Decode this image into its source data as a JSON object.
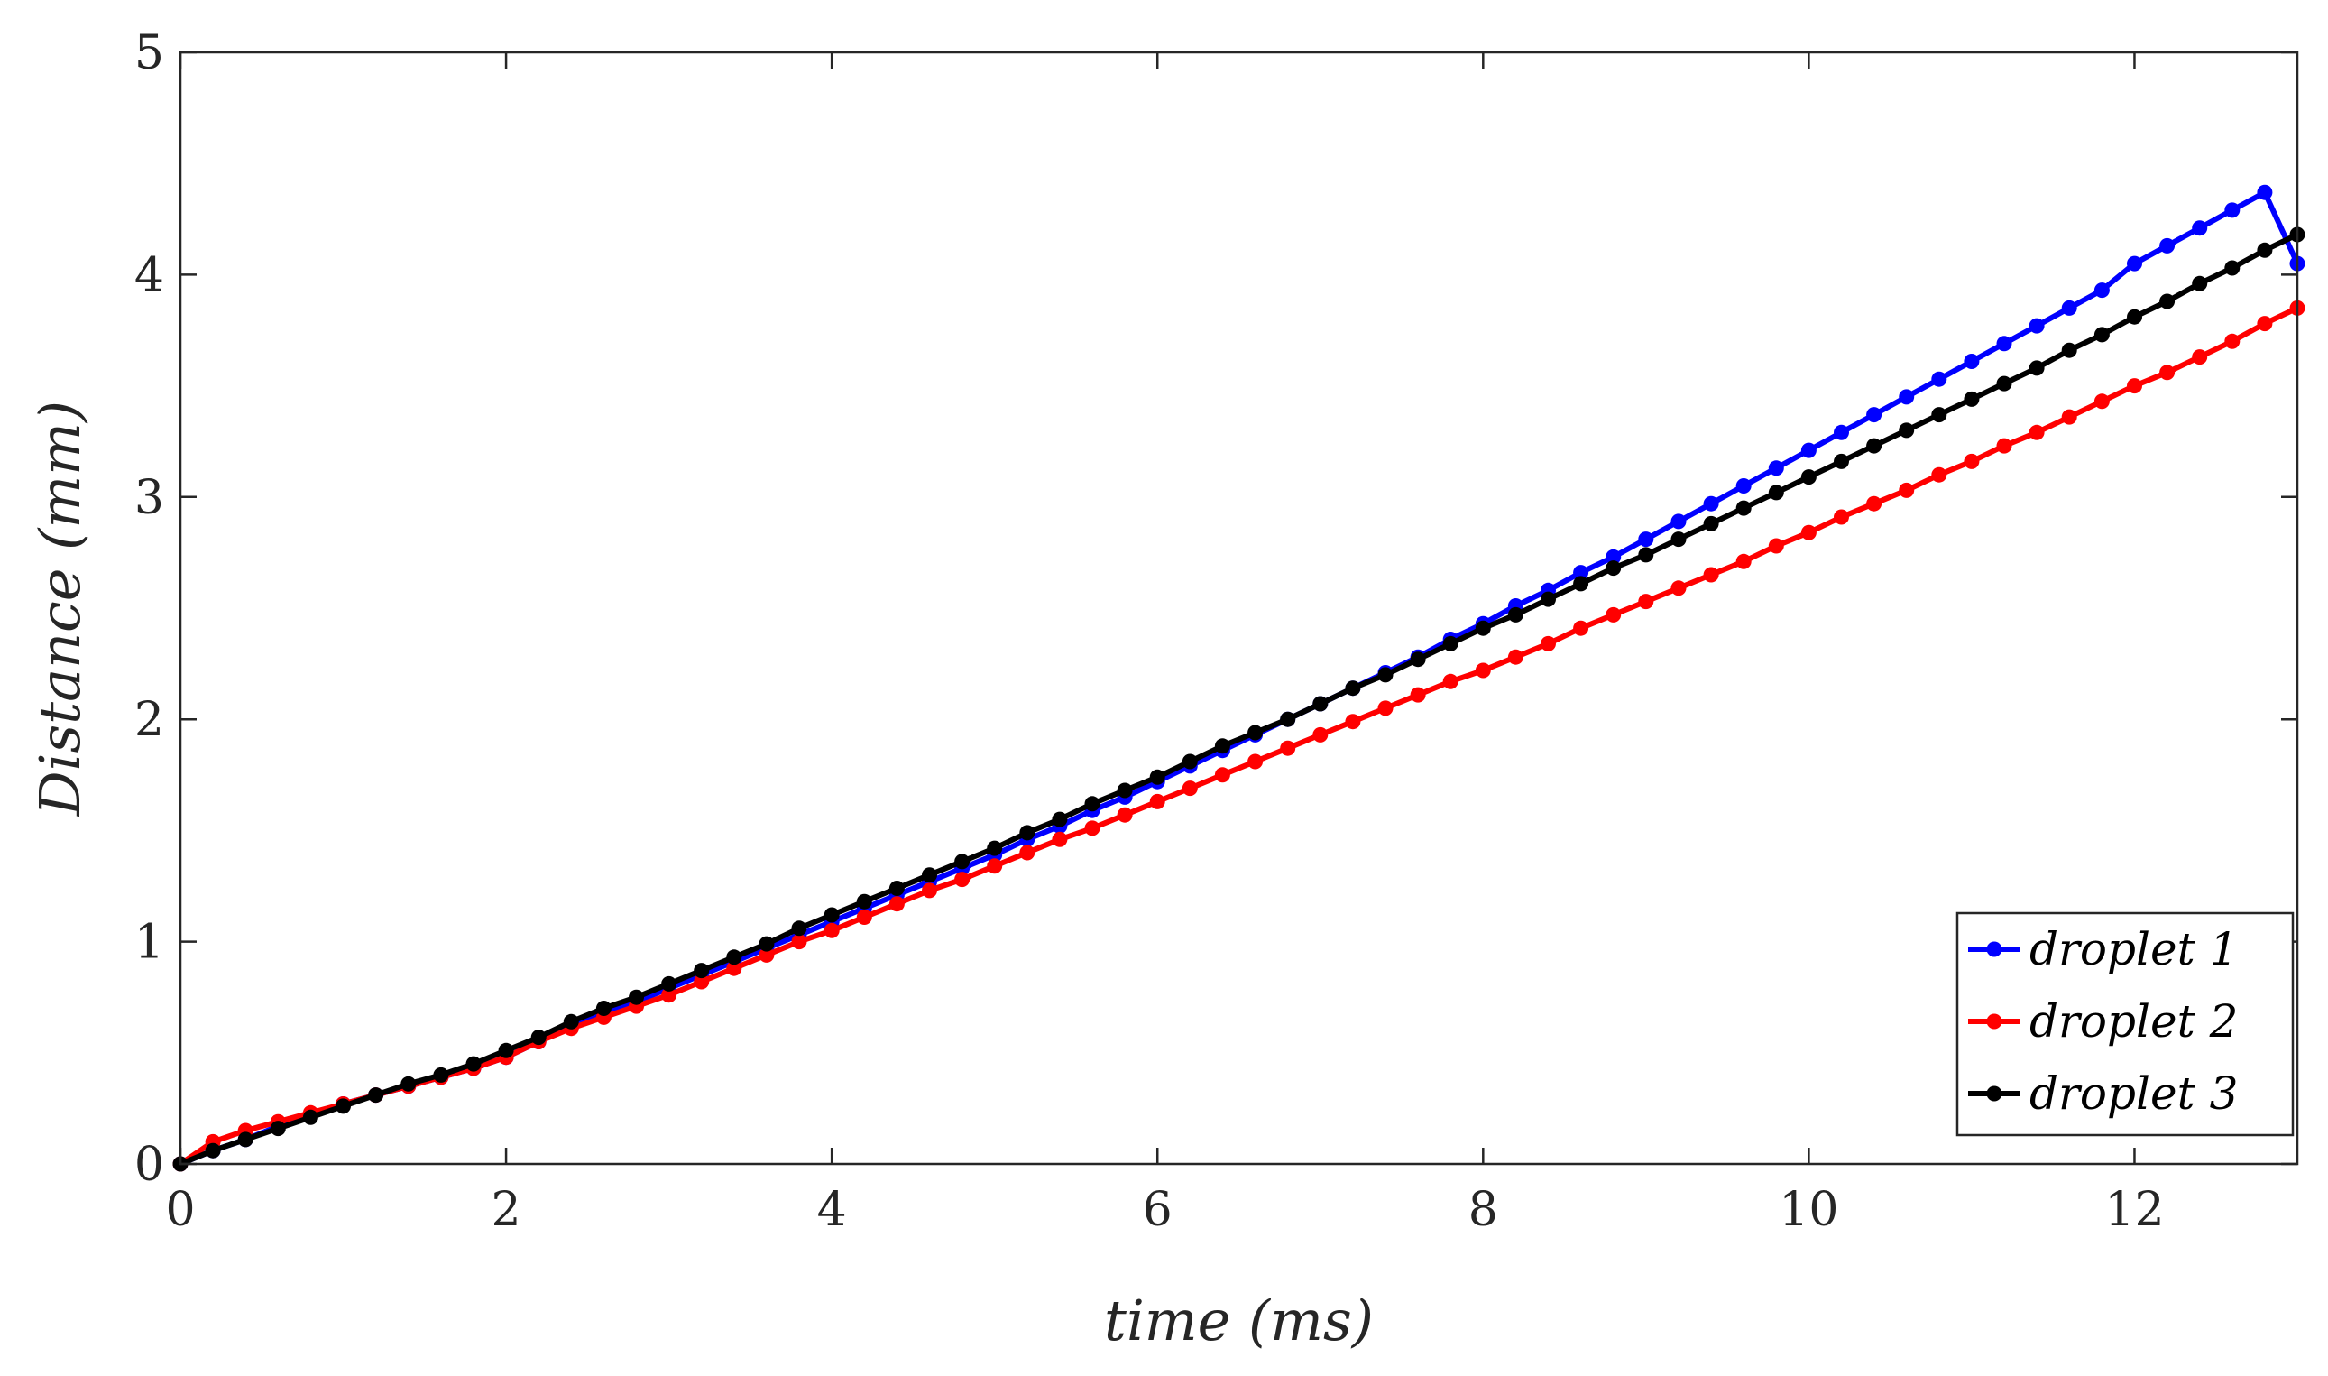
{
  "chart_data": {
    "type": "line",
    "title": "",
    "xlabel": "time (ms)",
    "ylabel": "Distance (mm)",
    "xlim": [
      0,
      13
    ],
    "ylim": [
      0,
      5
    ],
    "xticks": [
      0,
      2,
      4,
      6,
      8,
      10,
      12
    ],
    "yticks": [
      0,
      1,
      2,
      3,
      4,
      5
    ],
    "xtick_labels": [
      "0",
      "2",
      "4",
      "6",
      "8",
      "10",
      "12"
    ],
    "ytick_labels": [
      "0",
      "1",
      "2",
      "3",
      "4",
      "5"
    ],
    "grid": false,
    "legend_position": "bottom-right",
    "series": [
      {
        "name": "droplet 1",
        "color": "#0000ff",
        "marker": "circle",
        "x": [
          0,
          0.2,
          0.4,
          0.6,
          0.8,
          1,
          1.2,
          1.4,
          1.6,
          1.8,
          2,
          2.2,
          2.4,
          2.6,
          2.8,
          3,
          3.2,
          3.4,
          3.6,
          3.8,
          4,
          4.2,
          4.4,
          4.6,
          4.8,
          5,
          5.2,
          5.4,
          5.6,
          5.8,
          6,
          6.2,
          6.4,
          6.6,
          6.8,
          7,
          7.2,
          7.4,
          7.6,
          7.8,
          8,
          8.2,
          8.4,
          8.6,
          8.8,
          9,
          9.2,
          9.4,
          9.6,
          9.8,
          10,
          10.2,
          10.4,
          10.6,
          10.8,
          11,
          11.2,
          11.4,
          11.6,
          11.8,
          12,
          12.2,
          12.4,
          12.6,
          12.8,
          13
        ],
        "y": [
          0,
          0.06,
          0.11,
          0.17,
          0.22,
          0.27,
          0.31,
          0.35,
          0.39,
          0.43,
          0.48,
          0.55,
          0.62,
          0.68,
          0.73,
          0.79,
          0.85,
          0.91,
          0.97,
          1.03,
          1.09,
          1.15,
          1.21,
          1.27,
          1.33,
          1.39,
          1.46,
          1.52,
          1.59,
          1.65,
          1.72,
          1.79,
          1.86,
          1.93,
          2.0,
          2.07,
          2.14,
          2.21,
          2.28,
          2.36,
          2.43,
          2.51,
          2.58,
          2.66,
          2.73,
          2.81,
          2.89,
          2.97,
          3.05,
          3.13,
          3.21,
          3.29,
          3.37,
          3.45,
          3.53,
          3.61,
          3.69,
          3.77,
          3.85,
          3.93,
          4.05,
          4.13,
          4.21,
          4.29,
          4.37,
          4.05
        ]
      },
      {
        "name": "droplet 2",
        "color": "#ff0000",
        "marker": "circle",
        "x": [
          0,
          0.2,
          0.4,
          0.6,
          0.8,
          1,
          1.2,
          1.4,
          1.6,
          1.8,
          2,
          2.2,
          2.4,
          2.6,
          2.8,
          3,
          3.2,
          3.4,
          3.6,
          3.8,
          4,
          4.2,
          4.4,
          4.6,
          4.8,
          5,
          5.2,
          5.4,
          5.6,
          5.8,
          6,
          6.2,
          6.4,
          6.6,
          6.8,
          7,
          7.2,
          7.4,
          7.6,
          7.8,
          8,
          8.2,
          8.4,
          8.6,
          8.8,
          9,
          9.2,
          9.4,
          9.6,
          9.8,
          10,
          10.2,
          10.4,
          10.6,
          10.8,
          11,
          11.2,
          11.4,
          11.6,
          11.8,
          12,
          12.2,
          12.4,
          12.6,
          12.8,
          13
        ],
        "y": [
          0,
          0.1,
          0.15,
          0.19,
          0.23,
          0.27,
          0.31,
          0.35,
          0.39,
          0.43,
          0.48,
          0.55,
          0.61,
          0.66,
          0.71,
          0.76,
          0.82,
          0.88,
          0.94,
          1.0,
          1.05,
          1.11,
          1.17,
          1.23,
          1.28,
          1.34,
          1.4,
          1.46,
          1.51,
          1.57,
          1.63,
          1.69,
          1.75,
          1.81,
          1.87,
          1.93,
          1.99,
          2.05,
          2.11,
          2.17,
          2.22,
          2.28,
          2.34,
          2.41,
          2.47,
          2.53,
          2.59,
          2.65,
          2.71,
          2.78,
          2.84,
          2.91,
          2.97,
          3.03,
          3.1,
          3.16,
          3.23,
          3.29,
          3.36,
          3.43,
          3.5,
          3.56,
          3.63,
          3.7,
          3.78,
          3.85
        ]
      },
      {
        "name": "droplet 3",
        "color": "#000000",
        "marker": "circle",
        "x": [
          0,
          0.2,
          0.4,
          0.6,
          0.8,
          1,
          1.2,
          1.4,
          1.6,
          1.8,
          2,
          2.2,
          2.4,
          2.6,
          2.8,
          3,
          3.2,
          3.4,
          3.6,
          3.8,
          4,
          4.2,
          4.4,
          4.6,
          4.8,
          5,
          5.2,
          5.4,
          5.6,
          5.8,
          6,
          6.2,
          6.4,
          6.6,
          6.8,
          7,
          7.2,
          7.4,
          7.6,
          7.8,
          8,
          8.2,
          8.4,
          8.6,
          8.8,
          9,
          9.2,
          9.4,
          9.6,
          9.8,
          10,
          10.2,
          10.4,
          10.6,
          10.8,
          11,
          11.2,
          11.4,
          11.6,
          11.8,
          12,
          12.2,
          12.4,
          12.6,
          12.8,
          13
        ],
        "y": [
          0,
          0.06,
          0.11,
          0.16,
          0.21,
          0.26,
          0.31,
          0.36,
          0.4,
          0.45,
          0.51,
          0.57,
          0.64,
          0.7,
          0.75,
          0.81,
          0.87,
          0.93,
          0.99,
          1.06,
          1.12,
          1.18,
          1.24,
          1.3,
          1.36,
          1.42,
          1.49,
          1.55,
          1.62,
          1.68,
          1.74,
          1.81,
          1.88,
          1.94,
          2.0,
          2.07,
          2.14,
          2.2,
          2.27,
          2.34,
          2.41,
          2.47,
          2.54,
          2.61,
          2.68,
          2.74,
          2.81,
          2.88,
          2.95,
          3.02,
          3.09,
          3.16,
          3.23,
          3.3,
          3.37,
          3.44,
          3.51,
          3.58,
          3.66,
          3.73,
          3.81,
          3.88,
          3.96,
          4.03,
          4.11,
          4.18
        ]
      }
    ]
  }
}
